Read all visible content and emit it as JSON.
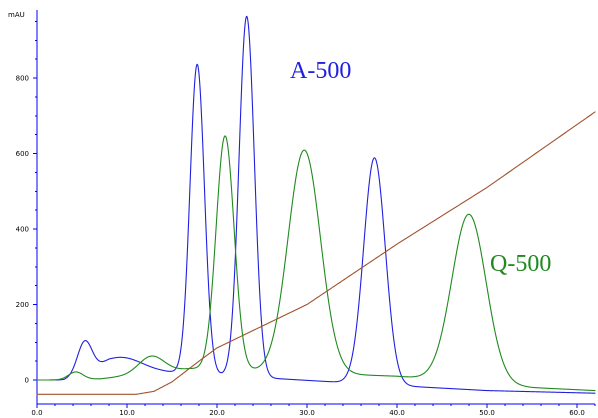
{
  "chart_data": {
    "type": "line",
    "title": "",
    "xlabel": "",
    "ylabel": "",
    "y_unit": "mAU",
    "xlim": [
      0,
      62
    ],
    "ylim": [
      -40,
      980
    ],
    "x_ticks": [
      "0.0",
      "10.0",
      "20.0",
      "30.0",
      "40.0",
      "50.0",
      "60.0"
    ],
    "y_ticks": [
      "0",
      "200",
      "400",
      "600",
      "800"
    ],
    "grid": false,
    "annotations": [
      {
        "text": "A-500",
        "color": "#2020e0"
      },
      {
        "text": "Q-500",
        "color": "#1f8a1f"
      }
    ],
    "series": [
      {
        "label_ref": "A-500",
        "color": "#2020e0",
        "baseline": [
          [
            0,
            0
          ],
          [
            3,
            0
          ],
          [
            8,
            30
          ],
          [
            40,
            -15
          ],
          [
            50,
            -28
          ],
          [
            62,
            -35
          ]
        ],
        "peaks": [
          {
            "x": 5.3,
            "height": 85,
            "width": 0.8
          },
          {
            "x": 9.5,
            "height": 32,
            "width": 2.2
          },
          {
            "x": 17.8,
            "height": 820,
            "width": 0.8
          },
          {
            "x": 23.3,
            "height": 955,
            "width": 0.85
          },
          {
            "x": 37.5,
            "height": 600,
            "width": 1.2
          }
        ]
      },
      {
        "label_ref": "Q-500",
        "color": "#1f8a1f",
        "baseline": [
          [
            0,
            0
          ],
          [
            2,
            0
          ],
          [
            7,
            3
          ],
          [
            17,
            30
          ],
          [
            40,
            10
          ],
          [
            55,
            -20
          ],
          [
            62,
            -28
          ]
        ],
        "peaks": [
          {
            "x": 4.3,
            "height": 20,
            "width": 0.8
          },
          {
            "x": 12.7,
            "height": 45,
            "width": 1.4
          },
          {
            "x": 20.9,
            "height": 620,
            "width": 1.0
          },
          {
            "x": 29.7,
            "height": 590,
            "width": 1.8
          },
          {
            "x": 48.0,
            "height": 445,
            "width": 1.9
          }
        ]
      },
      {
        "label_ref": "gradient",
        "color": "#a0522d",
        "points": [
          [
            0,
            -38
          ],
          [
            11,
            -38
          ],
          [
            13,
            -30
          ],
          [
            15,
            -5
          ],
          [
            18,
            50
          ],
          [
            20,
            85
          ],
          [
            30,
            200
          ],
          [
            40,
            360
          ],
          [
            50,
            510
          ],
          [
            62,
            710
          ]
        ]
      }
    ]
  }
}
